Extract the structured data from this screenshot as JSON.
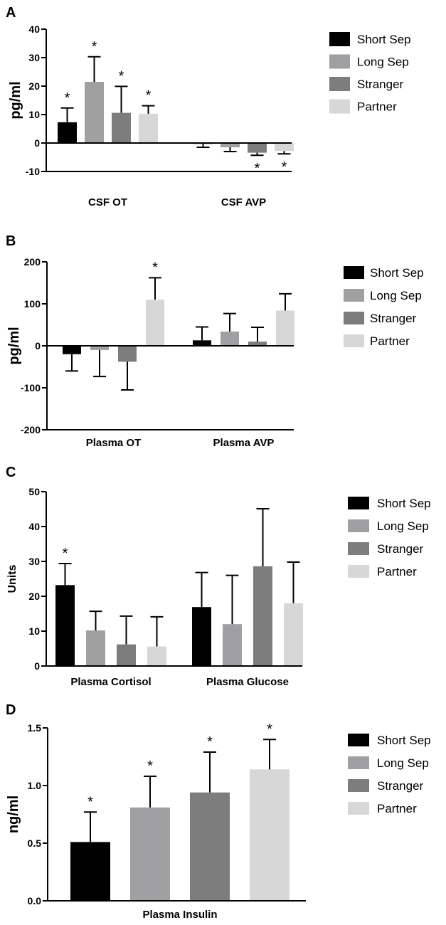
{
  "colors": {
    "Short Sep": "#000000",
    "Long Sep": "#a0a0a2",
    "Stranger": "#7d7d7d",
    "Partner": "#d7d7d7"
  },
  "chart_data": [
    {
      "panel": "A",
      "type": "bar",
      "ylabel": "pg/ml",
      "ylim": [
        -10,
        40
      ],
      "yticks": [
        -10,
        0,
        10,
        20,
        30,
        40
      ],
      "categories": [
        "CSF OT",
        "CSF AVP"
      ],
      "series": [
        {
          "name": "Short Sep",
          "values": [
            7.3,
            -0.3
          ],
          "errors": [
            5.0,
            1.2
          ],
          "significant": [
            true,
            false
          ]
        },
        {
          "name": "Long Sep",
          "values": [
            21.5,
            -1.5
          ],
          "errors": [
            8.8,
            1.5
          ],
          "significant": [
            true,
            false
          ]
        },
        {
          "name": "Stranger",
          "values": [
            10.6,
            -3.4
          ],
          "errors": [
            9.3,
            0.9
          ],
          "significant": [
            true,
            true
          ]
        },
        {
          "name": "Partner",
          "values": [
            10.3,
            -2.8
          ],
          "errors": [
            2.8,
            1.0
          ],
          "significant": [
            true,
            true
          ]
        }
      ]
    },
    {
      "panel": "B",
      "type": "bar",
      "ylabel": "pg/ml",
      "ylim": [
        -200,
        200
      ],
      "yticks": [
        -200,
        -100,
        0,
        100,
        200
      ],
      "categories": [
        "Plasma OT",
        "Plasma AVP"
      ],
      "series": [
        {
          "name": "Short Sep",
          "values": [
            -20,
            13
          ],
          "errors": [
            40,
            32
          ],
          "significant": [
            false,
            false
          ]
        },
        {
          "name": "Long Sep",
          "values": [
            -10,
            34
          ],
          "errors": [
            63,
            43
          ],
          "significant": [
            false,
            false
          ]
        },
        {
          "name": "Stranger",
          "values": [
            -38,
            10
          ],
          "errors": [
            67,
            34
          ],
          "significant": [
            false,
            false
          ]
        },
        {
          "name": "Partner",
          "values": [
            110,
            84
          ],
          "errors": [
            52,
            40
          ],
          "significant": [
            true,
            false
          ]
        }
      ]
    },
    {
      "panel": "C",
      "type": "bar",
      "ylabel": "Units",
      "ylim": [
        0,
        50
      ],
      "yticks": [
        0,
        10,
        20,
        30,
        40,
        50
      ],
      "categories": [
        "Plasma Cortisol",
        "Plasma Glucose"
      ],
      "series": [
        {
          "name": "Short Sep",
          "values": [
            23.2,
            16.9
          ],
          "errors": [
            6.2,
            9.9
          ],
          "significant": [
            true,
            false
          ]
        },
        {
          "name": "Long Sep",
          "values": [
            10.2,
            12.0
          ],
          "errors": [
            5.5,
            14.0
          ],
          "significant": [
            false,
            false
          ]
        },
        {
          "name": "Stranger",
          "values": [
            6.2,
            28.6
          ],
          "errors": [
            8.1,
            16.5
          ],
          "significant": [
            false,
            false
          ]
        },
        {
          "name": "Partner",
          "values": [
            5.6,
            18.0
          ],
          "errors": [
            8.5,
            11.8
          ],
          "significant": [
            false,
            false
          ]
        }
      ]
    },
    {
      "panel": "D",
      "type": "bar",
      "ylabel": "ng/ml",
      "ylim": [
        0,
        1.5
      ],
      "yticks": [
        0.0,
        0.5,
        1.0,
        1.5
      ],
      "ytick_labels": [
        "0.0",
        "0.5",
        "1.0",
        "1.5"
      ],
      "categories": [
        "Plasma Insulin"
      ],
      "series": [
        {
          "name": "Short Sep",
          "values": [
            0.51
          ],
          "errors": [
            0.26
          ],
          "significant": [
            true
          ]
        },
        {
          "name": "Long Sep",
          "values": [
            0.81
          ],
          "errors": [
            0.27
          ],
          "significant": [
            true
          ]
        },
        {
          "name": "Stranger",
          "values": [
            0.94
          ],
          "errors": [
            0.35
          ],
          "significant": [
            true
          ]
        },
        {
          "name": "Partner",
          "values": [
            1.14
          ],
          "errors": [
            0.26
          ],
          "significant": [
            true
          ]
        }
      ]
    }
  ],
  "significance_marker": "*"
}
